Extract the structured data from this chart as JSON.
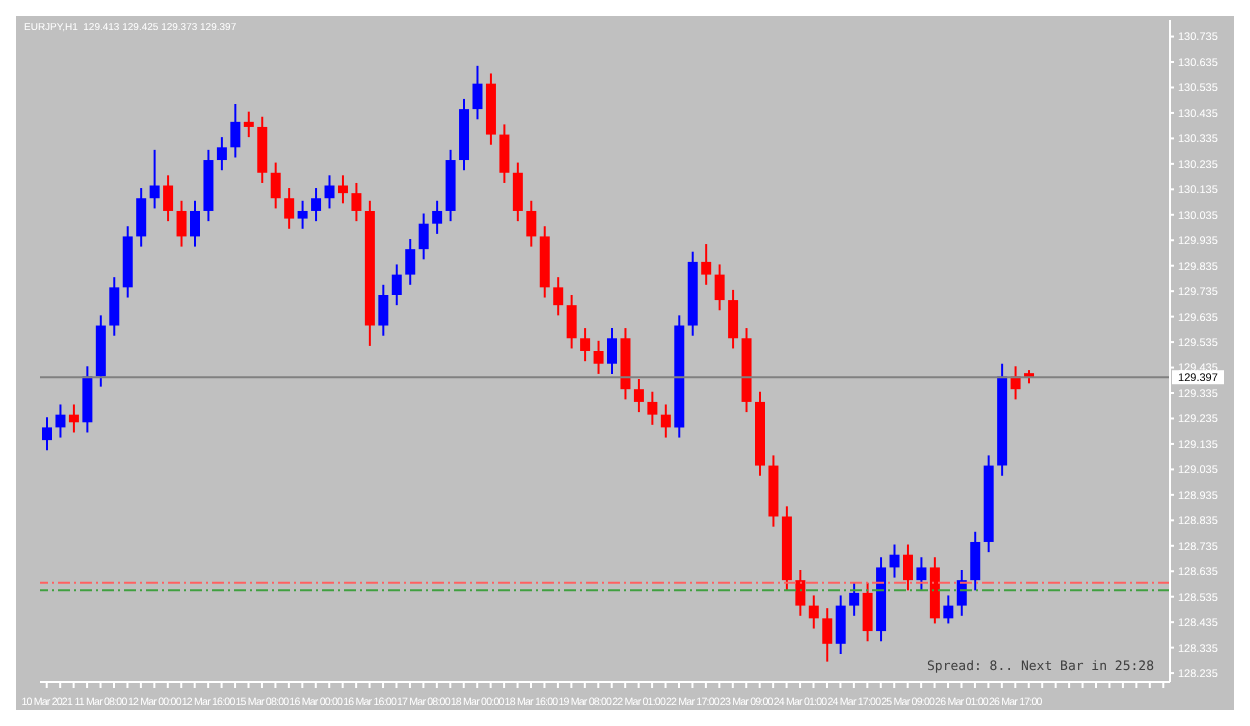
{
  "chart_data": {
    "type": "candlestick",
    "title": "EURJPY,H1  129.413 129.425 129.373 129.397",
    "categories": [
      "10 Mar 2021",
      null,
      null,
      null,
      "11 Mar 08:00",
      null,
      null,
      null,
      "12 Mar 00:00",
      null,
      null,
      null,
      "12 Mar 16:00",
      null,
      null,
      null,
      "15 Mar 08:00",
      null,
      null,
      null,
      "16 Mar 00:00",
      null,
      null,
      null,
      "16 Mar 16:00",
      null,
      null,
      null,
      "17 Mar 08:00",
      null,
      null,
      null,
      "18 Mar 00:00",
      null,
      null,
      null,
      "18 Mar 16:00",
      null,
      null,
      null,
      "19 Mar 08:00",
      null,
      null,
      null,
      "22 Mar 01:00",
      null,
      null,
      null,
      "22 Mar 17:00",
      null,
      null,
      null,
      "23 Mar 09:00",
      null,
      null,
      null,
      "24 Mar 01:00",
      null,
      null,
      null,
      "24 Mar 17:00",
      null,
      null,
      null,
      "25 Mar 09:00",
      null,
      null,
      null,
      "26 Mar 01:00",
      null,
      null,
      null,
      "26 Mar 17:00",
      null,
      null,
      null,
      null,
      null,
      null,
      null,
      null,
      null,
      null,
      null
    ],
    "ohlc": [
      [
        129.15,
        129.24,
        129.11,
        129.2
      ],
      [
        129.2,
        129.29,
        129.16,
        129.25
      ],
      [
        129.25,
        129.29,
        129.18,
        129.22
      ],
      [
        129.22,
        129.44,
        129.18,
        129.4
      ],
      [
        129.4,
        129.64,
        129.36,
        129.6
      ],
      [
        129.6,
        129.79,
        129.56,
        129.75
      ],
      [
        129.75,
        129.99,
        129.71,
        129.95
      ],
      [
        129.95,
        130.14,
        129.91,
        130.1
      ],
      [
        130.1,
        130.29,
        130.06,
        130.15
      ],
      [
        130.15,
        130.19,
        130.01,
        130.05
      ],
      [
        130.05,
        130.09,
        129.91,
        129.95
      ],
      [
        129.95,
        130.09,
        129.91,
        130.05
      ],
      [
        130.05,
        130.29,
        130.01,
        130.25
      ],
      [
        130.25,
        130.34,
        130.21,
        130.3
      ],
      [
        130.3,
        130.47,
        130.26,
        130.4
      ],
      [
        130.4,
        130.44,
        130.34,
        130.38
      ],
      [
        130.38,
        130.42,
        130.16,
        130.2
      ],
      [
        130.2,
        130.24,
        130.06,
        130.1
      ],
      [
        130.1,
        130.14,
        129.98,
        130.02
      ],
      [
        130.02,
        130.09,
        129.98,
        130.05
      ],
      [
        130.05,
        130.14,
        130.01,
        130.1
      ],
      [
        130.1,
        130.19,
        130.06,
        130.15
      ],
      [
        130.15,
        130.19,
        130.08,
        130.12
      ],
      [
        130.12,
        130.16,
        130.01,
        130.05
      ],
      [
        130.05,
        130.09,
        129.52,
        129.6
      ],
      [
        129.6,
        129.76,
        129.56,
        129.72
      ],
      [
        129.72,
        129.84,
        129.68,
        129.8
      ],
      [
        129.8,
        129.94,
        129.76,
        129.9
      ],
      [
        129.9,
        130.04,
        129.86,
        130.0
      ],
      [
        130.0,
        130.09,
        129.96,
        130.05
      ],
      [
        130.05,
        130.29,
        130.01,
        130.25
      ],
      [
        130.25,
        130.49,
        130.21,
        130.45
      ],
      [
        130.45,
        130.62,
        130.41,
        130.55
      ],
      [
        130.55,
        130.59,
        130.31,
        130.35
      ],
      [
        130.35,
        130.39,
        130.16,
        130.2
      ],
      [
        130.2,
        130.24,
        130.01,
        130.05
      ],
      [
        130.05,
        130.09,
        129.91,
        129.95
      ],
      [
        129.95,
        129.99,
        129.71,
        129.75
      ],
      [
        129.75,
        129.79,
        129.64,
        129.68
      ],
      [
        129.68,
        129.72,
        129.51,
        129.55
      ],
      [
        129.55,
        129.59,
        129.46,
        129.5
      ],
      [
        129.5,
        129.54,
        129.41,
        129.45
      ],
      [
        129.45,
        129.59,
        129.41,
        129.55
      ],
      [
        129.55,
        129.59,
        129.31,
        129.35
      ],
      [
        129.35,
        129.39,
        129.26,
        129.3
      ],
      [
        129.3,
        129.34,
        129.21,
        129.25
      ],
      [
        129.25,
        129.29,
        129.16,
        129.2
      ],
      [
        129.2,
        129.64,
        129.16,
        129.6
      ],
      [
        129.6,
        129.89,
        129.56,
        129.85
      ],
      [
        129.85,
        129.92,
        129.76,
        129.8
      ],
      [
        129.8,
        129.84,
        129.66,
        129.7
      ],
      [
        129.7,
        129.74,
        129.51,
        129.55
      ],
      [
        129.55,
        129.59,
        129.26,
        129.3
      ],
      [
        129.3,
        129.34,
        129.01,
        129.05
      ],
      [
        129.05,
        129.09,
        128.81,
        128.85
      ],
      [
        128.85,
        128.89,
        128.56,
        128.6
      ],
      [
        128.6,
        128.64,
        128.46,
        128.5
      ],
      [
        128.5,
        128.54,
        128.41,
        128.45
      ],
      [
        128.45,
        128.49,
        128.28,
        128.35
      ],
      [
        128.35,
        128.54,
        128.31,
        128.5
      ],
      [
        128.5,
        128.59,
        128.46,
        128.55
      ],
      [
        128.55,
        128.59,
        128.36,
        128.4
      ],
      [
        128.4,
        128.69,
        128.36,
        128.65
      ],
      [
        128.65,
        128.74,
        128.61,
        128.7
      ],
      [
        128.7,
        128.74,
        128.56,
        128.6
      ],
      [
        128.6,
        128.69,
        128.56,
        128.65
      ],
      [
        128.65,
        128.69,
        128.43,
        128.45
      ],
      [
        128.45,
        128.54,
        128.43,
        128.5
      ],
      [
        128.5,
        128.64,
        128.46,
        128.6
      ],
      [
        128.6,
        128.79,
        128.56,
        128.75
      ],
      [
        128.75,
        129.09,
        128.71,
        129.05
      ],
      [
        129.05,
        129.45,
        129.01,
        129.4
      ],
      [
        129.4,
        129.44,
        129.31,
        129.35
      ],
      [
        129.413,
        129.425,
        129.373,
        129.397
      ],
      null,
      null,
      null,
      null,
      null,
      null,
      null,
      null,
      null,
      null
    ],
    "colors": [
      "#0000ff",
      "#0000ff",
      "#ff0000",
      "#0000ff",
      "#0000ff",
      "#0000ff",
      "#0000ff",
      "#0000ff",
      "#0000ff",
      "#ff0000",
      "#ff0000",
      "#0000ff",
      "#0000ff",
      "#0000ff",
      "#0000ff",
      "#ff0000",
      "#ff0000",
      "#ff0000",
      "#ff0000",
      "#0000ff",
      "#0000ff",
      "#0000ff",
      "#ff0000",
      "#ff0000",
      "#ff0000",
      "#0000ff",
      "#0000ff",
      "#0000ff",
      "#0000ff",
      "#0000ff",
      "#0000ff",
      "#0000ff",
      "#0000ff",
      "#ff0000",
      "#ff0000",
      "#ff0000",
      "#ff0000",
      "#ff0000",
      "#ff0000",
      "#ff0000",
      "#ff0000",
      "#ff0000",
      "#0000ff",
      "#ff0000",
      "#ff0000",
      "#ff0000",
      "#ff0000",
      "#0000ff",
      "#0000ff",
      "#ff0000",
      "#ff0000",
      "#ff0000",
      "#ff0000",
      "#ff0000",
      "#ff0000",
      "#ff0000",
      "#ff0000",
      "#ff0000",
      "#ff0000",
      "#0000ff",
      "#0000ff",
      "#ff0000",
      "#0000ff",
      "#0000ff",
      "#ff0000",
      "#0000ff",
      "#ff0000",
      "#0000ff",
      "#0000ff",
      "#0000ff",
      "#0000ff",
      "#0000ff",
      "#ff0000",
      "#ff0000",
      null,
      null,
      null,
      null,
      null,
      null,
      null,
      null,
      null,
      null
    ],
    "ylim": [
      128.2,
      130.8
    ],
    "yticks": [
      {
        "value": 128.235,
        "label": "128.235"
      },
      {
        "value": 128.335,
        "label": "128.335"
      },
      {
        "value": 128.435,
        "label": "128.435"
      },
      {
        "value": 128.535,
        "label": "128.535"
      },
      {
        "value": 128.635,
        "label": "128.635"
      },
      {
        "value": 128.735,
        "label": "128.735"
      },
      {
        "value": 128.835,
        "label": "128.835"
      },
      {
        "value": 128.935,
        "label": "128.935"
      },
      {
        "value": 129.035,
        "label": "129.035"
      },
      {
        "value": 129.135,
        "label": "129.135"
      },
      {
        "value": 129.235,
        "label": "129.235"
      },
      {
        "value": 129.335,
        "label": "129.335"
      },
      {
        "value": 129.435,
        "label": "129.435"
      },
      {
        "value": 129.535,
        "label": "129.535"
      },
      {
        "value": 129.635,
        "label": "129.635"
      },
      {
        "value": 129.735,
        "label": "129.735"
      },
      {
        "value": 129.835,
        "label": "129.835"
      },
      {
        "value": 129.935,
        "label": "129.935"
      },
      {
        "value": 130.035,
        "label": "130.035"
      },
      {
        "value": 130.135,
        "label": "130.135"
      },
      {
        "value": 130.235,
        "label": "130.235"
      },
      {
        "value": 130.335,
        "label": "130.335"
      },
      {
        "value": 130.435,
        "label": "130.435"
      },
      {
        "value": 130.535,
        "label": "130.535"
      },
      {
        "value": 130.635,
        "label": "130.635"
      },
      {
        "value": 130.735,
        "label": "130.735"
      }
    ],
    "ref_lines": [
      {
        "axis": "y",
        "value": 129.397,
        "label": "129.397",
        "color": "#808080",
        "line_style": "solid"
      },
      {
        "axis": "y",
        "value": 128.59,
        "color": "#ff6060",
        "line_style": "dashed"
      },
      {
        "axis": "y",
        "value": 128.56,
        "color": "#40a040",
        "line_style": "dashed"
      }
    ],
    "annotations": [
      "Spread: 8.. Next Bar in 25:28"
    ],
    "grid": false,
    "legend": false
  }
}
